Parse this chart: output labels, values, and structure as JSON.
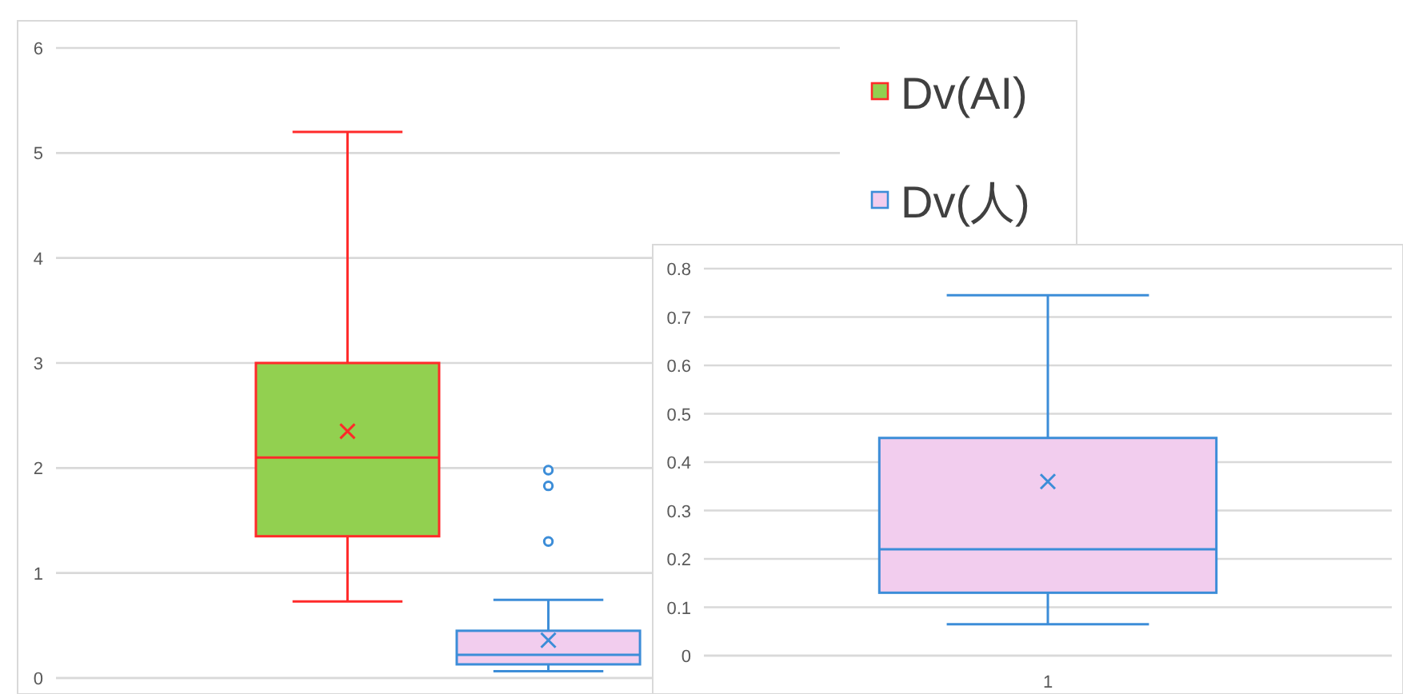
{
  "chart_data": [
    {
      "type": "box",
      "categories": [
        null
      ],
      "ylim": [
        0,
        6
      ],
      "yticks": [
        0,
        1,
        2,
        3,
        4,
        5,
        6
      ],
      "grid": "y",
      "legend": "right",
      "series": [
        {
          "name": "Dv(AI)",
          "color": "#ff2a2a",
          "colors": [
            "#92d050"
          ],
          "boxes": [
            {
              "low": 0.73,
              "q1": 1.35,
              "median": 2.1,
              "q3": 3.0,
              "high": 5.2,
              "mean": 2.35
            }
          ]
        },
        {
          "name": "Dv(人)",
          "color": "#3c8dd8",
          "colors": [
            "#f2cdee"
          ],
          "boxes": [
            {
              "low": 0.065,
              "q1": 0.13,
              "median": 0.22,
              "q3": 0.45,
              "high": 0.745,
              "mean": 0.36,
              "outliers": [
                1.3,
                1.83,
                1.98
              ]
            }
          ]
        }
      ]
    },
    {
      "type": "box",
      "categories": [
        "1"
      ],
      "ylim": [
        0,
        0.8
      ],
      "yticks": [
        0,
        0.1,
        0.2,
        0.3,
        0.4,
        0.5,
        0.6,
        0.7,
        0.8
      ],
      "grid": "y",
      "series": [
        {
          "color": "#3c8dd8",
          "colors": [
            "#f2cdee"
          ],
          "boxes": [
            {
              "low": 0.065,
              "q1": 0.13,
              "median": 0.22,
              "q3": 0.45,
              "high": 0.745,
              "mean": 0.36
            }
          ]
        }
      ]
    }
  ]
}
